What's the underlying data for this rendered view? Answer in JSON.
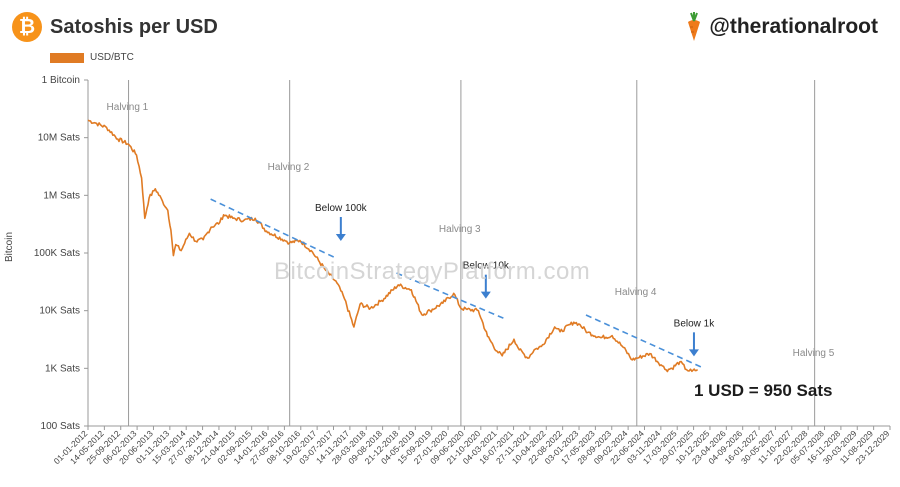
{
  "header": {
    "title": "Satoshis per USD",
    "logo_text": "₿",
    "handle": "@therationalroot",
    "handle_icon": "carrot-icon"
  },
  "watermark": "BitcoinStrategyPlatform.com",
  "stat": "1 USD = 950 Sats",
  "colors": {
    "series": "#e07b24",
    "trend": "#4a90d9",
    "arrow": "#3c7fcf",
    "logo": "#f7931a"
  },
  "chart_data": {
    "type": "line",
    "title": "Satoshis per USD",
    "ylabel": "Bitcoin",
    "yscale": "log",
    "y_ticks": [
      {
        "value": 100000000,
        "label": "1 Bitcoin"
      },
      {
        "value": 10000000,
        "label": "10M Sats"
      },
      {
        "value": 1000000,
        "label": "1M Sats"
      },
      {
        "value": 100000,
        "label": "100K Sats"
      },
      {
        "value": 10000,
        "label": "10K Sats"
      },
      {
        "value": 1000,
        "label": "1K Sats"
      },
      {
        "value": 100,
        "label": "100 Sats"
      }
    ],
    "x_tick_labels": [
      "01-01-2012",
      "14-05-2012",
      "25-09-2012",
      "06-02-2013",
      "20-06-2013",
      "01-11-2013",
      "15-03-2014",
      "27-07-2014",
      "08-12-2014",
      "21-04-2015",
      "02-09-2015",
      "14-01-2016",
      "27-05-2016",
      "08-10-2016",
      "19-02-2017",
      "03-07-2017",
      "14-11-2017",
      "28-03-2018",
      "09-08-2018",
      "21-12-2018",
      "04-05-2019",
      "15-09-2019",
      "27-01-2020",
      "09-06-2020",
      "21-10-2020",
      "04-03-2021",
      "16-07-2021",
      "27-11-2021",
      "10-04-2022",
      "22-08-2022",
      "03-01-2023",
      "17-05-2023",
      "28-09-2023",
      "09-02-2024",
      "22-06-2024",
      "03-11-2024",
      "17-03-2025",
      "29-07-2025",
      "10-12-2025",
      "23-04-2026",
      "04-09-2026",
      "16-01-2027",
      "30-05-2027",
      "11-10-2027",
      "22-02-2028",
      "05-07-2028",
      "16-11-2028",
      "30-03-2029",
      "11-08-2029",
      "23-12-2029"
    ],
    "series": [
      {
        "name": "USD/BTC",
        "x": [
          "2012-01-01",
          "2012-03-01",
          "2012-06-01",
          "2012-09-01",
          "2012-11-28",
          "2013-02-01",
          "2013-03-15",
          "2013-04-10",
          "2013-05-15",
          "2013-07-05",
          "2013-09-01",
          "2013-10-15",
          "2013-11-10",
          "2013-11-30",
          "2013-12-20",
          "2014-02-01",
          "2014-04-10",
          "2014-06-01",
          "2014-08-01",
          "2014-10-05",
          "2014-12-15",
          "2015-01-15",
          "2015-04-01",
          "2015-07-01",
          "2015-10-01",
          "2016-01-01",
          "2016-06-15",
          "2016-07-09",
          "2016-10-01",
          "2017-01-01",
          "2017-05-01",
          "2017-08-01",
          "2017-10-01",
          "2017-12-17",
          "2018-02-06",
          "2018-05-01",
          "2018-08-01",
          "2018-12-15",
          "2019-04-01",
          "2019-06-26",
          "2019-09-01",
          "2019-12-15",
          "2020-03-13",
          "2020-05-11",
          "2020-07-01",
          "2020-10-01",
          "2020-12-15",
          "2021-03-01",
          "2021-04-14",
          "2021-07-20",
          "2021-09-01",
          "2021-11-10",
          "2022-01-01",
          "2022-03-01",
          "2022-06-18",
          "2022-08-01",
          "2022-11-21",
          "2023-01-01",
          "2023-03-15",
          "2023-07-01",
          "2023-10-01",
          "2024-01-01",
          "2024-03-14",
          "2024-04-20",
          "2024-08-05",
          "2024-11-15",
          "2024-12-17",
          "2025-02-01",
          "2025-04-08",
          "2025-06-01",
          "2025-07-15",
          "2025-08-31"
        ],
        "y": [
          20000000,
          18000000,
          15000000,
          9500000,
          7700000,
          5000000,
          2000000,
          400000,
          900000,
          1300000,
          800000,
          550000,
          250000,
          90000,
          140000,
          110000,
          220000,
          160000,
          170000,
          280000,
          340000,
          460000,
          400000,
          370000,
          400000,
          240000,
          160000,
          150000,
          165000,
          110000,
          50000,
          30000,
          16000,
          5200,
          13000,
          11000,
          15000,
          28000,
          23000,
          8500,
          10000,
          13500,
          20000,
          11000,
          10500,
          10000,
          3600,
          2000,
          1650,
          3200,
          2100,
          1500,
          2100,
          2400,
          5200,
          4300,
          6300,
          5900,
          4200,
          3400,
          3700,
          2300,
          1400,
          1500,
          1800,
          1100,
          940,
          1000,
          1300,
          950,
          890,
          950
        ]
      }
    ],
    "halvings": [
      {
        "date": "2012-11-28",
        "label": "Halving 1"
      },
      {
        "date": "2016-07-09",
        "label": "Halving 2"
      },
      {
        "date": "2020-05-11",
        "label": "Halving 3"
      },
      {
        "date": "2024-04-20",
        "label": "Halving 4"
      },
      {
        "date": "2028-04-15",
        "label": "Halving 5"
      }
    ],
    "trendlines": [
      {
        "from": {
          "date": "2014-10-01",
          "value": 860000
        },
        "to": {
          "date": "2017-08-01",
          "value": 80000
        }
      },
      {
        "from": {
          "date": "2018-12-01",
          "value": 45000
        },
        "to": {
          "date": "2021-05-01",
          "value": 7300
        }
      },
      {
        "from": {
          "date": "2023-03-01",
          "value": 8400
        },
        "to": {
          "date": "2025-10-01",
          "value": 1050
        }
      }
    ],
    "annotations": [
      {
        "label": "Below 100k",
        "date": "2017-09-01",
        "value": 100000
      },
      {
        "label": "Below 10k",
        "date": "2020-12-01",
        "value": 10000
      },
      {
        "label": "Below 1k",
        "date": "2025-08-01",
        "value": 1000
      }
    ],
    "legend": "top-left",
    "grid": false
  }
}
